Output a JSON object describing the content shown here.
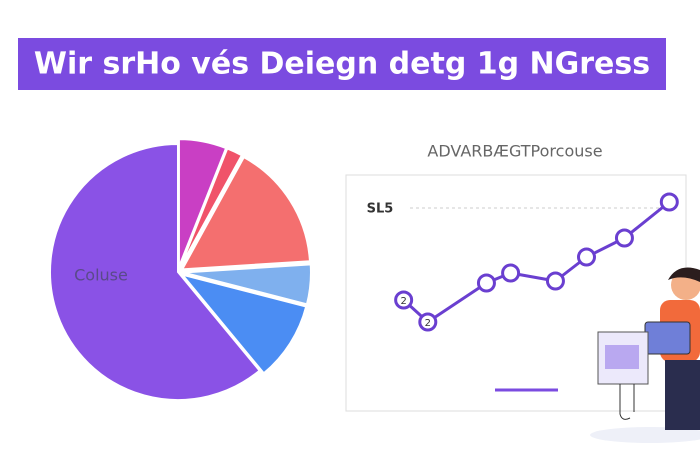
{
  "header": {
    "title": "Wir srHo vés Deiegn detg 1g NGress"
  },
  "chart_data": [
    {
      "type": "pie",
      "label": "Coluse",
      "categories": [
        null,
        null,
        null,
        null,
        null,
        null
      ],
      "values": [
        6,
        2,
        16,
        5,
        10,
        61
      ],
      "colors": [
        "#c93fc4",
        "#f0536a",
        "#f46f6f",
        "#7fb0ee",
        "#4b8df3",
        "#8a52e6"
      ]
    },
    {
      "type": "line",
      "title": "ADVARBÆGTPorcouse",
      "y_label": "SL5",
      "x": [
        17,
        24,
        41,
        48,
        61,
        70,
        81,
        94
      ],
      "series": [
        {
          "name": null,
          "color": "#6a3fd0",
          "values": [
            45,
            34,
            53.5,
            58.5,
            54.5,
            66.5,
            76,
            94
          ]
        }
      ],
      "marker_labels": [
        "2",
        "2",
        null,
        null,
        null,
        null,
        null,
        null
      ],
      "xlim": [
        0,
        100
      ],
      "ylim": [
        0,
        100
      ]
    }
  ]
}
